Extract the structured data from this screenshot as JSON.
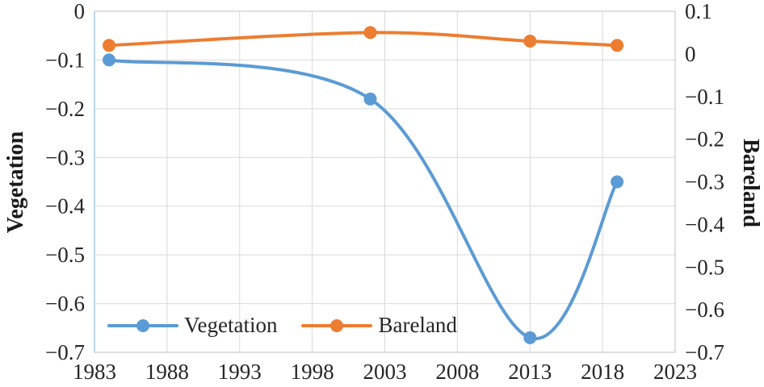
{
  "chart_data": {
    "type": "line",
    "x": [
      1984,
      2002,
      2013,
      2019
    ],
    "series": [
      {
        "name": "Vegetation",
        "axis": "left",
        "color": "#5B9BD5",
        "values": [
          -0.1,
          -0.18,
          -0.67,
          -0.35
        ]
      },
      {
        "name": "Bareland",
        "axis": "right",
        "color": "#ED7D31",
        "values": [
          0.02,
          0.05,
          0.03,
          0.02
        ]
      }
    ],
    "x_axis": {
      "min": 1983,
      "max": 2023,
      "ticks": [
        1983,
        1988,
        1993,
        1998,
        2003,
        2008,
        2013,
        2018,
        2023
      ]
    },
    "left_axis": {
      "label": "Vegetation",
      "max": 0,
      "min": -0.7,
      "step": 0.1
    },
    "right_axis": {
      "label": "Bareland",
      "max": 0.1,
      "min": -0.7,
      "step": 0.1
    },
    "legend": {
      "position": "inside-bottom-left",
      "items": [
        "Vegetation",
        "Bareland"
      ]
    },
    "grid": true,
    "smooth_lines": true,
    "colors": {
      "grid": "#D9D9D9",
      "plot_border": "#BFBFBF",
      "axis_accent": "#BDD7EE",
      "text": "#262626"
    }
  }
}
